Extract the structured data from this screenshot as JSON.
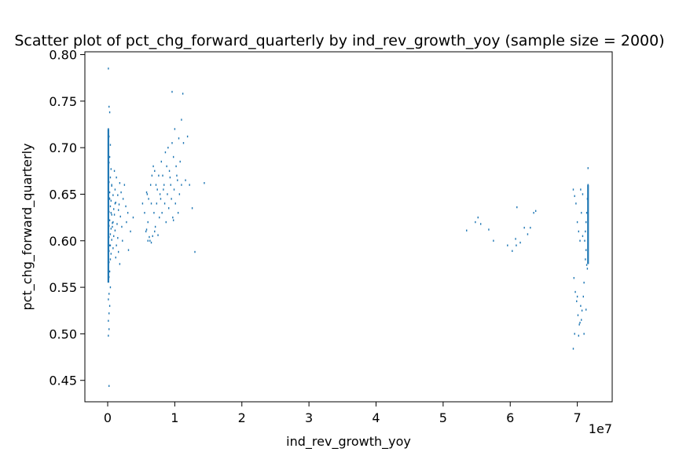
{
  "chart_data": {
    "type": "scatter",
    "title": "Scatter plot of pct_chg_forward_quarterly by ind_rev_growth_yoy (sample size = 2000)",
    "xlabel": "ind_rev_growth_yoy",
    "ylabel": "pct_chg_forward_quarterly",
    "x_offset_label": "1e7",
    "xlim": [
      -3.4,
      75.2
    ],
    "ylim": [
      0.427,
      0.803
    ],
    "x_ticks": [
      0,
      1,
      2,
      3,
      4,
      5,
      6,
      7
    ],
    "y_ticks": [
      0.45,
      0.5,
      0.55,
      0.6,
      0.65,
      0.7,
      0.75,
      0.8
    ],
    "x_tick_labels": [
      "0",
      "1",
      "2",
      "3",
      "4",
      "5",
      "6",
      "7"
    ],
    "y_tick_labels": [
      "0.45",
      "0.50",
      "0.55",
      "0.60",
      "0.65",
      "0.70",
      "0.75",
      "0.80"
    ],
    "x_units_note": "x values in units of 1e6 (axis multiplier 1e7)",
    "grid": false,
    "marker_color": "#1f77b4",
    "points": [
      [
        0.1,
        0.785
      ],
      [
        0.2,
        0.744
      ],
      [
        0.3,
        0.738
      ],
      [
        0.1,
        0.72
      ],
      [
        0.2,
        0.712
      ],
      [
        0.4,
        0.703
      ],
      [
        0.1,
        0.698
      ],
      [
        0.3,
        0.69
      ],
      [
        0.2,
        0.684
      ],
      [
        0.5,
        0.677
      ],
      [
        0.1,
        0.672
      ],
      [
        0.4,
        0.668
      ],
      [
        0.2,
        0.663
      ],
      [
        0.6,
        0.659
      ],
      [
        0.1,
        0.655
      ],
      [
        0.3,
        0.652
      ],
      [
        0.8,
        0.649
      ],
      [
        0.2,
        0.646
      ],
      [
        0.5,
        0.643
      ],
      [
        0.1,
        0.64
      ],
      [
        0.4,
        0.637
      ],
      [
        0.9,
        0.634
      ],
      [
        0.2,
        0.631
      ],
      [
        0.6,
        0.628
      ],
      [
        0.1,
        0.625
      ],
      [
        0.3,
        0.622
      ],
      [
        0.7,
        0.619
      ],
      [
        0.2,
        0.616
      ],
      [
        0.5,
        0.613
      ],
      [
        0.1,
        0.61
      ],
      [
        0.4,
        0.607
      ],
      [
        0.2,
        0.604
      ],
      [
        0.6,
        0.601
      ],
      [
        0.1,
        0.598
      ],
      [
        0.3,
        0.595
      ],
      [
        0.8,
        0.592
      ],
      [
        0.2,
        0.589
      ],
      [
        0.5,
        0.586
      ],
      [
        0.1,
        0.583
      ],
      [
        0.4,
        0.58
      ],
      [
        0.2,
        0.577
      ],
      [
        0.1,
        0.572
      ],
      [
        0.3,
        0.567
      ],
      [
        0.2,
        0.561
      ],
      [
        0.1,
        0.556
      ],
      [
        0.4,
        0.55
      ],
      [
        0.2,
        0.543
      ],
      [
        0.1,
        0.537
      ],
      [
        0.3,
        0.53
      ],
      [
        0.2,
        0.522
      ],
      [
        0.1,
        0.514
      ],
      [
        0.2,
        0.505
      ],
      [
        0.1,
        0.498
      ],
      [
        0.2,
        0.444
      ],
      [
        1.0,
        0.675
      ],
      [
        1.3,
        0.668
      ],
      [
        1.1,
        0.655
      ],
      [
        1.5,
        0.649
      ],
      [
        1.2,
        0.641
      ],
      [
        1.6,
        0.633
      ],
      [
        1.0,
        0.628
      ],
      [
        1.8,
        0.662
      ],
      [
        1.4,
        0.618
      ],
      [
        2.0,
        0.652
      ],
      [
        1.7,
        0.639
      ],
      [
        1.1,
        0.611
      ],
      [
        2.3,
        0.645
      ],
      [
        1.5,
        0.603
      ],
      [
        1.9,
        0.626
      ],
      [
        2.5,
        0.66
      ],
      [
        1.3,
        0.595
      ],
      [
        2.1,
        0.615
      ],
      [
        1.6,
        0.588
      ],
      [
        2.7,
        0.637
      ],
      [
        1.2,
        0.582
      ],
      [
        2.2,
        0.6
      ],
      [
        3.0,
        0.63
      ],
      [
        1.8,
        0.575
      ],
      [
        2.8,
        0.62
      ],
      [
        3.4,
        0.61
      ],
      [
        3.8,
        0.625
      ],
      [
        3.1,
        0.59
      ],
      [
        0.3,
        0.645
      ],
      [
        0.6,
        0.66
      ],
      [
        0.5,
        0.63
      ],
      [
        0.7,
        0.615
      ],
      [
        0.9,
        0.605
      ],
      [
        0.4,
        0.595
      ],
      [
        1.1,
        0.64
      ],
      [
        0.8,
        0.62
      ],
      [
        5.2,
        0.64
      ],
      [
        5.8,
        0.652
      ],
      [
        6.1,
        0.645
      ],
      [
        5.5,
        0.63
      ],
      [
        6.4,
        0.66
      ],
      [
        6.0,
        0.62
      ],
      [
        5.7,
        0.61
      ],
      [
        6.3,
        0.6
      ],
      [
        5.9,
        0.65
      ],
      [
        6.6,
        0.67
      ],
      [
        6.8,
        0.68
      ],
      [
        7.0,
        0.675
      ],
      [
        6.5,
        0.64
      ],
      [
        7.2,
        0.66
      ],
      [
        7.4,
        0.655
      ],
      [
        6.9,
        0.63
      ],
      [
        7.6,
        0.67
      ],
      [
        7.1,
        0.615
      ],
      [
        7.8,
        0.65
      ],
      [
        6.7,
        0.605
      ],
      [
        8.0,
        0.685
      ],
      [
        7.3,
        0.64
      ],
      [
        8.2,
        0.67
      ],
      [
        7.7,
        0.625
      ],
      [
        8.4,
        0.66
      ],
      [
        7.9,
        0.645
      ],
      [
        8.6,
        0.695
      ],
      [
        8.1,
        0.63
      ],
      [
        8.8,
        0.68
      ],
      [
        8.3,
        0.655
      ],
      [
        9.0,
        0.7
      ],
      [
        8.5,
        0.64
      ],
      [
        9.2,
        0.675
      ],
      [
        8.7,
        0.62
      ],
      [
        9.4,
        0.66
      ],
      [
        8.9,
        0.65
      ],
      [
        9.6,
        0.705
      ],
      [
        9.1,
        0.635
      ],
      [
        9.8,
        0.69
      ],
      [
        9.3,
        0.668
      ],
      [
        10.0,
        0.72
      ],
      [
        9.5,
        0.645
      ],
      [
        10.2,
        0.68
      ],
      [
        9.7,
        0.625
      ],
      [
        10.4,
        0.665
      ],
      [
        9.9,
        0.655
      ],
      [
        10.6,
        0.71
      ],
      [
        10.1,
        0.64
      ],
      [
        10.8,
        0.685
      ],
      [
        10.3,
        0.67
      ],
      [
        11.0,
        0.66
      ],
      [
        10.5,
        0.63
      ],
      [
        11.3,
        0.705
      ],
      [
        10.7,
        0.65
      ],
      [
        11.6,
        0.665
      ],
      [
        11.9,
        0.712
      ],
      [
        12.2,
        0.66
      ],
      [
        12.6,
        0.635
      ],
      [
        13.0,
        0.588
      ],
      [
        14.4,
        0.662
      ],
      [
        9.6,
        0.76
      ],
      [
        11.2,
        0.758
      ],
      [
        11.0,
        0.73
      ],
      [
        6.2,
        0.604
      ],
      [
        6.5,
        0.598
      ],
      [
        5.8,
        0.612
      ],
      [
        7.0,
        0.61
      ],
      [
        7.5,
        0.606
      ],
      [
        6.0,
        0.6
      ],
      [
        9.8,
        0.622
      ],
      [
        53.5,
        0.611
      ],
      [
        54.8,
        0.62
      ],
      [
        55.2,
        0.625
      ],
      [
        55.6,
        0.618
      ],
      [
        56.8,
        0.612
      ],
      [
        57.5,
        0.6
      ],
      [
        59.6,
        0.595
      ],
      [
        60.3,
        0.589
      ],
      [
        60.8,
        0.602
      ],
      [
        61.5,
        0.598
      ],
      [
        61.0,
        0.636
      ],
      [
        62.1,
        0.614
      ],
      [
        62.6,
        0.607
      ],
      [
        63.0,
        0.614
      ],
      [
        63.5,
        0.63
      ],
      [
        63.8,
        0.632
      ],
      [
        60.9,
        0.595
      ],
      [
        69.4,
        0.655
      ],
      [
        69.6,
        0.648
      ],
      [
        69.8,
        0.64
      ],
      [
        70.0,
        0.62
      ],
      [
        70.2,
        0.61
      ],
      [
        70.4,
        0.6
      ],
      [
        70.5,
        0.655
      ],
      [
        70.6,
        0.63
      ],
      [
        70.8,
        0.65
      ],
      [
        69.5,
        0.56
      ],
      [
        69.7,
        0.545
      ],
      [
        69.9,
        0.535
      ],
      [
        70.1,
        0.52
      ],
      [
        70.3,
        0.51
      ],
      [
        70.5,
        0.53
      ],
      [
        70.0,
        0.54
      ],
      [
        69.6,
        0.5
      ],
      [
        69.4,
        0.484
      ],
      [
        70.2,
        0.498
      ],
      [
        70.4,
        0.512
      ],
      [
        70.7,
        0.525
      ],
      [
        70.9,
        0.54
      ],
      [
        71.0,
        0.555
      ],
      [
        71.1,
        0.6
      ],
      [
        71.2,
        0.61
      ],
      [
        71.3,
        0.62
      ],
      [
        71.4,
        0.63
      ],
      [
        71.5,
        0.645
      ],
      [
        71.6,
        0.66
      ],
      [
        71.6,
        0.678
      ],
      [
        71.4,
        0.574
      ],
      [
        71.2,
        0.58
      ],
      [
        71.5,
        0.57
      ],
      [
        71.3,
        0.59
      ],
      [
        70.8,
        0.605
      ],
      [
        71.0,
        0.5
      ],
      [
        70.6,
        0.515
      ],
      [
        71.3,
        0.526
      ]
    ],
    "dense_strips": [
      {
        "x": 0.1,
        "y_from": 0.555,
        "y_to": 0.72
      },
      {
        "x": 71.6,
        "y_from": 0.575,
        "y_to": 0.66
      }
    ]
  }
}
